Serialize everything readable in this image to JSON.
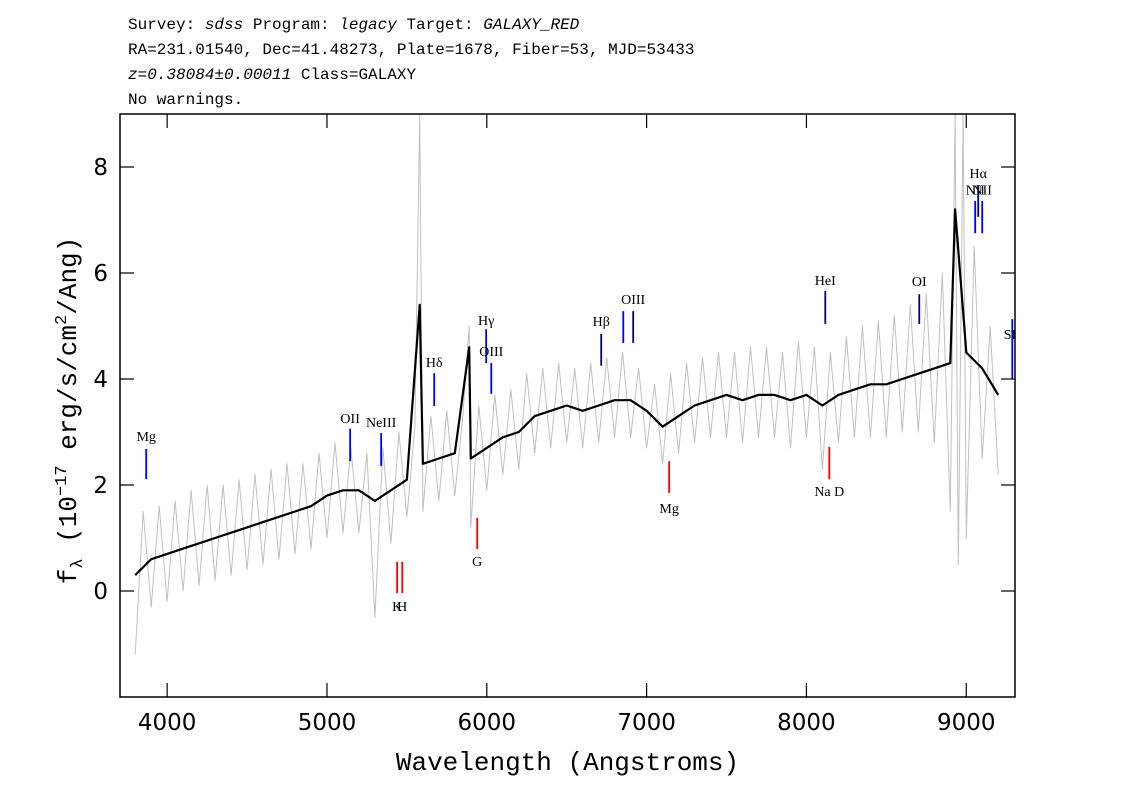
{
  "chart_data": {
    "type": "line",
    "header": [
      [
        {
          "text": "Survey: "
        },
        {
          "text": "sdss",
          "italic": true
        },
        {
          "text": " Program: "
        },
        {
          "text": "legacy",
          "italic": true
        },
        {
          "text": " Target: "
        },
        {
          "text": "GALAXY_RED",
          "italic": true
        }
      ],
      [
        {
          "text": "RA=231.01540, Dec=41.48273, Plate=1678, Fiber=53, MJD=53433"
        }
      ],
      [
        {
          "text": "z=0.38084±0.00011",
          "italic": true
        },
        {
          "text": " Class=GALAXY"
        }
      ],
      [
        {
          "text": "No warnings."
        }
      ]
    ],
    "xlabel": "Wavelength (Angstroms)",
    "ylabel": [
      {
        "text": "f"
      },
      {
        "text": "λ",
        "shift": "sub"
      },
      {
        "text": " (10"
      },
      {
        "text": "−17",
        "shift": "sup"
      },
      {
        "text": " erg/s/cm"
      },
      {
        "text": "2",
        "shift": "sup"
      },
      {
        "text": "/Ang)"
      }
    ],
    "xlim": [
      3705,
      9305
    ],
    "ylim": [
      -2,
      9
    ],
    "xticks": [
      4000,
      5000,
      6000,
      7000,
      8000,
      9000
    ],
    "yticks": [
      0,
      2,
      4,
      6,
      8
    ],
    "series": [
      {
        "color": "#c0c0c0",
        "x": [
          3800,
          3850,
          3900,
          3950,
          4000,
          4050,
          4100,
          4150,
          4200,
          4250,
          4300,
          4350,
          4400,
          4450,
          4500,
          4550,
          4600,
          4650,
          4700,
          4750,
          4800,
          4850,
          4900,
          4950,
          5000,
          5050,
          5100,
          5150,
          5200,
          5250,
          5300,
          5350,
          5400,
          5450,
          5500,
          5550,
          5580,
          5600,
          5650,
          5700,
          5750,
          5800,
          5850,
          5890,
          5900,
          5950,
          6000,
          6050,
          6100,
          6150,
          6200,
          6250,
          6300,
          6350,
          6400,
          6450,
          6500,
          6550,
          6600,
          6650,
          6700,
          6750,
          6800,
          6850,
          6900,
          6950,
          7000,
          7050,
          7100,
          7150,
          7200,
          7250,
          7300,
          7350,
          7400,
          7450,
          7500,
          7550,
          7600,
          7650,
          7700,
          7750,
          7800,
          7850,
          7900,
          7950,
          8000,
          8050,
          8100,
          8150,
          8200,
          8250,
          8300,
          8350,
          8400,
          8450,
          8500,
          8550,
          8600,
          8650,
          8700,
          8750,
          8800,
          8850,
          8900,
          8930,
          8950,
          8980,
          9000,
          9050,
          9100,
          9150,
          9200
        ],
        "values": [
          -1.2,
          1.5,
          -0.3,
          1.6,
          -0.2,
          1.7,
          0.0,
          1.9,
          0.1,
          2.0,
          0.2,
          2.0,
          0.3,
          2.1,
          0.4,
          2.2,
          0.5,
          2.3,
          0.6,
          2.4,
          0.7,
          2.4,
          0.8,
          2.6,
          1.0,
          2.8,
          1.1,
          2.7,
          1.1,
          2.6,
          -0.5,
          2.7,
          0.9,
          3.0,
          1.4,
          3.1,
          9.0,
          1.5,
          3.3,
          1.7,
          3.4,
          1.8,
          3.3,
          5.0,
          1.2,
          3.5,
          1.9,
          3.7,
          2.2,
          3.8,
          2.3,
          4.1,
          2.6,
          4.2,
          2.7,
          4.3,
          2.8,
          4.2,
          2.7,
          4.3,
          2.8,
          4.4,
          2.9,
          4.5,
          2.9,
          4.2,
          2.7,
          3.9,
          2.4,
          4.1,
          2.6,
          4.3,
          2.8,
          4.4,
          2.9,
          4.5,
          2.9,
          4.5,
          2.8,
          4.6,
          2.9,
          4.6,
          2.9,
          4.5,
          2.7,
          4.7,
          2.9,
          4.6,
          2.3,
          4.5,
          2.8,
          4.8,
          2.9,
          5.0,
          2.9,
          5.1,
          2.9,
          5.2,
          3.0,
          5.4,
          3.0,
          5.6,
          2.8,
          6.0,
          1.5,
          9.0,
          0.5,
          9.0,
          1.0,
          6.5,
          2.5,
          5.0,
          2.2
        ]
      },
      {
        "color": "#000000",
        "x": [
          3800,
          3900,
          4000,
          4100,
          4200,
          4300,
          4400,
          4500,
          4600,
          4700,
          4800,
          4900,
          5000,
          5100,
          5200,
          5300,
          5400,
          5500,
          5580,
          5600,
          5700,
          5800,
          5890,
          5900,
          6000,
          6100,
          6200,
          6300,
          6400,
          6500,
          6600,
          6700,
          6800,
          6900,
          7000,
          7100,
          7200,
          7300,
          7400,
          7500,
          7600,
          7700,
          7800,
          7900,
          8000,
          8100,
          8200,
          8300,
          8400,
          8500,
          8600,
          8700,
          8800,
          8900,
          8930,
          9000,
          9100,
          9200
        ],
        "values": [
          0.3,
          0.6,
          0.7,
          0.8,
          0.9,
          1.0,
          1.1,
          1.2,
          1.3,
          1.4,
          1.5,
          1.6,
          1.8,
          1.9,
          1.9,
          1.7,
          1.9,
          2.1,
          5.4,
          2.4,
          2.5,
          2.6,
          4.6,
          2.5,
          2.7,
          2.9,
          3.0,
          3.3,
          3.4,
          3.5,
          3.4,
          3.5,
          3.6,
          3.6,
          3.4,
          3.1,
          3.3,
          3.5,
          3.6,
          3.7,
          3.6,
          3.7,
          3.7,
          3.6,
          3.7,
          3.5,
          3.7,
          3.8,
          3.9,
          3.9,
          4.0,
          4.1,
          4.2,
          4.3,
          7.2,
          4.5,
          4.2,
          3.7
        ]
      }
    ],
    "annotations": [
      {
        "label": "Mg",
        "x": 3869,
        "y0": 2.68,
        "y1": 2.11,
        "label_y": 2.92,
        "color": "#0000ff"
      },
      {
        "label": "OII",
        "x": 5145,
        "y0": 3.06,
        "y1": 2.45,
        "label_y": 3.26,
        "color": "#0000ff"
      },
      {
        "label": "NeIII",
        "x": 5339,
        "y0": 2.98,
        "y1": 2.36,
        "label_y": 3.19,
        "color": "#0000ff"
      },
      {
        "label": "Hδ",
        "x": 5671,
        "y0": 4.11,
        "y1": 3.49,
        "label_y": 4.32,
        "color": "#0000ff"
      },
      {
        "label": "Hγ",
        "x": 5996,
        "y0": 4.94,
        "y1": 4.3,
        "label_y": 5.11,
        "color": "#0000ff"
      },
      {
        "label": "OIII",
        "x": 6028,
        "y0": 4.3,
        "y1": 3.72,
        "label_y": 4.53,
        "color": "#0000ff"
      },
      {
        "label": "Hβ",
        "x": 6716,
        "y0": 4.85,
        "y1": 4.25,
        "label_y": 5.09,
        "color": "#000080"
      },
      {
        "x": 6854,
        "y0": 5.28,
        "y1": 4.68,
        "color": "#0000ff"
      },
      {
        "label": "OIII",
        "x": 6916,
        "y0": 5.28,
        "y1": 4.68,
        "label_y": 5.51,
        "color": "#000080"
      },
      {
        "label": "HeI",
        "x": 8118,
        "y0": 5.66,
        "y1": 5.04,
        "label_y": 5.87,
        "color": "#000080"
      },
      {
        "label": "OI",
        "x": 8706,
        "y0": 5.6,
        "y1": 5.04,
        "label_y": 5.85,
        "color": "#000080"
      },
      {
        "label": "NII",
        "x": 9056,
        "y0": 7.36,
        "y1": 6.75,
        "label_y": 7.58,
        "color": "#0000ff"
      },
      {
        "label": "Hα",
        "x": 9075,
        "y0": 7.66,
        "y1": 7.06,
        "label_y": 7.89,
        "color": "#000080"
      },
      {
        "label": "NII",
        "x": 9100,
        "y0": 7.36,
        "y1": 6.75,
        "label_y": 7.58,
        "color": "#0000ff"
      },
      {
        "label": "SII",
        "x": 9288,
        "y0": 5.13,
        "y1": 4.0,
        "label_y": 4.85,
        "color": "#0000ff"
      },
      {
        "label": "K",
        "x": 5439,
        "y0": 0.55,
        "y1": -0.04,
        "label_y": -0.28,
        "color": "#ff0000"
      },
      {
        "label": "H",
        "x": 5471,
        "y0": 0.55,
        "y1": -0.04,
        "label_y": -0.28,
        "color": "#ff0000"
      },
      {
        "label": "G",
        "x": 5940,
        "y0": 1.38,
        "y1": 0.79,
        "label_y": 0.57,
        "color": "#ff0000"
      },
      {
        "label": "Mg",
        "x": 7141,
        "y0": 2.45,
        "y1": 1.85,
        "label_y": 1.57,
        "color": "#ff0000"
      },
      {
        "label": "Na D",
        "x": 8143,
        "y0": 2.72,
        "y1": 2.11,
        "label_y": 1.89,
        "color": "#ff0000"
      }
    ]
  }
}
